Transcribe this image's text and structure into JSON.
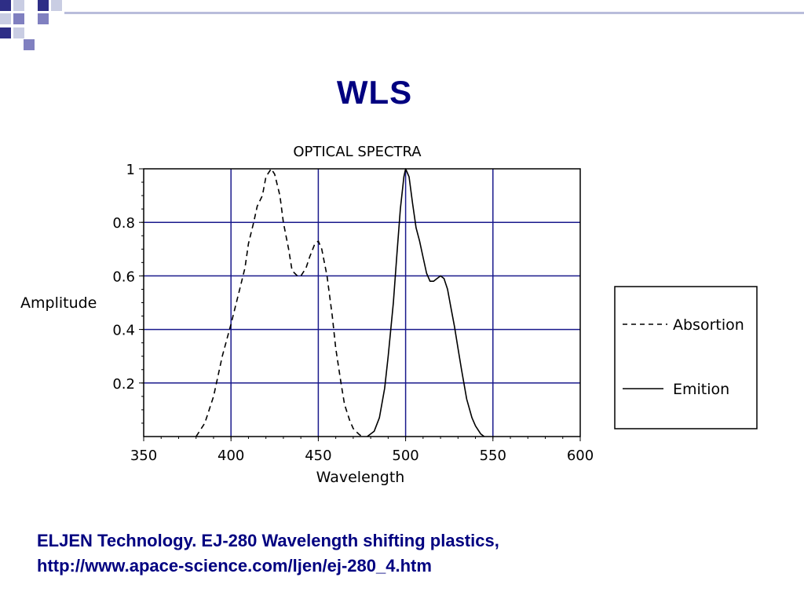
{
  "slide": {
    "title": "WLS",
    "citation_line1": "ELJEN Technology. EJ-280 Wavelength shifting plastics,",
    "citation_line2": "http://www.apace-science.com/ljen/ej-280_4.htm",
    "decoration_colors": [
      "#2e2e86",
      "#8080c0",
      "#c9cde3"
    ]
  },
  "chart_data": {
    "type": "line",
    "title": "OPTICAL SPECTRA",
    "xlabel": "Wavelength",
    "ylabel": "Amplitude",
    "xlim": [
      350,
      600
    ],
    "ylim": [
      0,
      1
    ],
    "x_ticks": [
      "350",
      "400",
      "450",
      "500",
      "550",
      "600"
    ],
    "y_ticks": [
      "0.2",
      "0.4",
      "0.6",
      "0.8",
      "1"
    ],
    "grid": true,
    "grid_color": "#1a1a8c",
    "legend_placement": "right",
    "series": [
      {
        "name": "Absortion",
        "style": "dashed",
        "x": [
          380,
          385,
          390,
          395,
          400,
          405,
          408,
          410,
          413,
          415,
          418,
          420,
          423,
          425,
          428,
          430,
          433,
          435,
          438,
          440,
          443,
          445,
          448,
          450,
          452,
          455,
          458,
          460,
          463,
          465,
          468,
          470,
          473,
          475
        ],
        "y": [
          0.0,
          0.05,
          0.15,
          0.3,
          0.42,
          0.55,
          0.63,
          0.72,
          0.8,
          0.86,
          0.9,
          0.97,
          1.0,
          0.98,
          0.9,
          0.8,
          0.7,
          0.62,
          0.6,
          0.6,
          0.63,
          0.67,
          0.72,
          0.73,
          0.7,
          0.6,
          0.45,
          0.33,
          0.2,
          0.12,
          0.06,
          0.03,
          0.01,
          0.0
        ]
      },
      {
        "name": "Emition",
        "style": "solid",
        "x": [
          478,
          482,
          485,
          488,
          490,
          493,
          495,
          497,
          499,
          500,
          502,
          504,
          506,
          508,
          510,
          512,
          514,
          516,
          518,
          520,
          522,
          524,
          526,
          528,
          530,
          532,
          535,
          538,
          540,
          543,
          545
        ],
        "y": [
          0.0,
          0.02,
          0.07,
          0.18,
          0.3,
          0.5,
          0.68,
          0.85,
          0.97,
          1.0,
          0.97,
          0.87,
          0.78,
          0.73,
          0.67,
          0.61,
          0.58,
          0.58,
          0.59,
          0.6,
          0.59,
          0.55,
          0.48,
          0.41,
          0.33,
          0.25,
          0.14,
          0.07,
          0.04,
          0.01,
          0.0
        ]
      }
    ]
  }
}
